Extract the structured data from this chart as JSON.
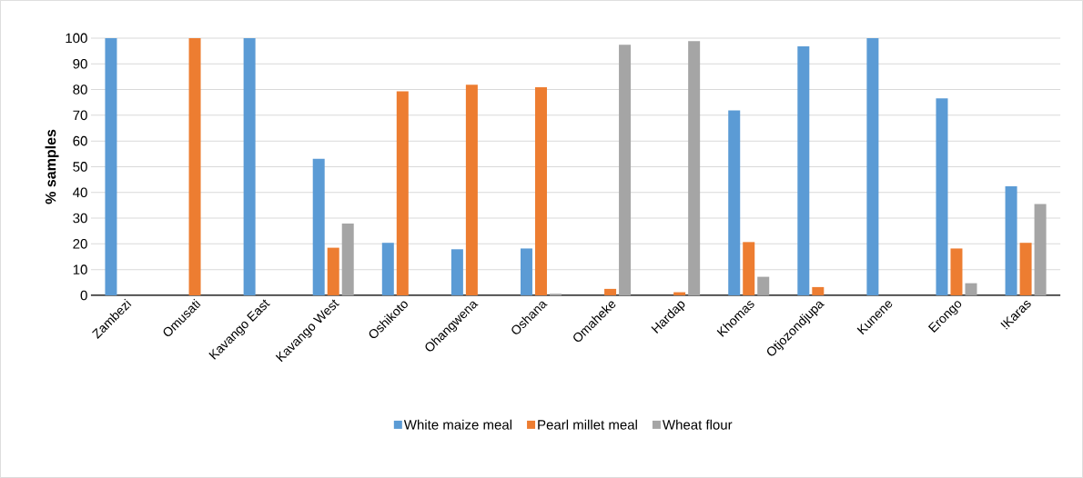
{
  "chart_data": {
    "type": "bar",
    "ylabel": "% samples",
    "categories": [
      "Zambezi",
      "Omusati",
      "Kavango East",
      "Kavango West",
      "Oshikoto",
      "Ohangwena",
      "Oshana",
      "Omaheke",
      "Hardap",
      "Khomas",
      "Otjozondjupa",
      "Kunene",
      "Erongo",
      "!Karas"
    ],
    "series": [
      {
        "name": "White maize meal",
        "color": "#5b9bd5",
        "values": [
          100,
          0,
          100,
          53.1,
          20.4,
          17.9,
          18.2,
          0,
          0,
          71.9,
          96.8,
          100,
          76.6,
          42.4
        ]
      },
      {
        "name": "Pearl millet meal",
        "color": "#ed7d31",
        "values": [
          0,
          100,
          0,
          18.5,
          79.3,
          81.9,
          80.9,
          2.5,
          1.2,
          20.7,
          3.2,
          0,
          18.2,
          20.4
        ]
      },
      {
        "name": "Wheat flour",
        "color": "#a5a5a5",
        "values": [
          0,
          0,
          0,
          27.9,
          0,
          0,
          0.6,
          97.4,
          98.8,
          7.2,
          0,
          0,
          4.7,
          35.5
        ]
      }
    ],
    "ylim": [
      0,
      100
    ],
    "yticks": [
      0,
      10,
      20,
      30,
      40,
      50,
      60,
      70,
      80,
      90,
      100
    ],
    "grid": "y",
    "legend": "bottom"
  }
}
